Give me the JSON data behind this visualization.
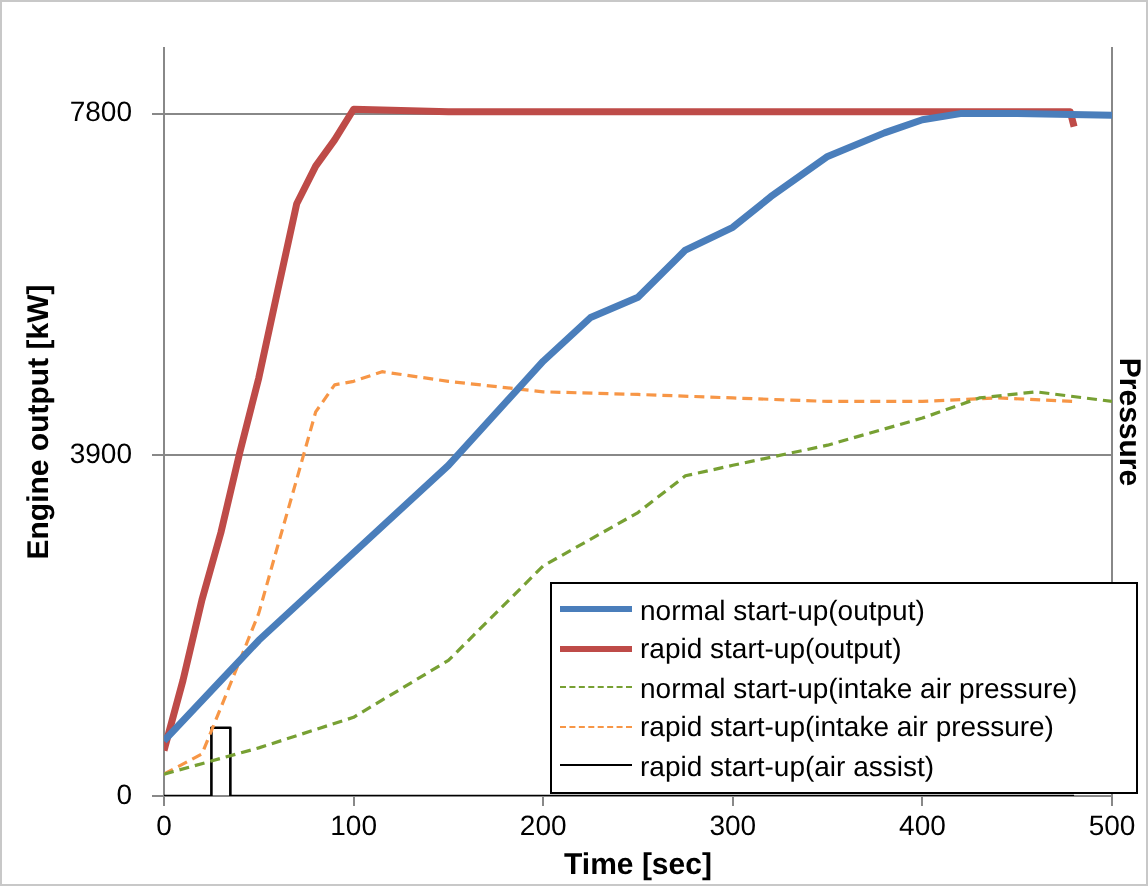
{
  "chart_data": {
    "type": "line",
    "xlabel": "Time [sec]",
    "ylabel": "Engine output [kW]",
    "y2label": "Pressure",
    "xlim": [
      0,
      500
    ],
    "xticks": [
      0,
      100,
      200,
      300,
      400,
      500
    ],
    "ylim": [
      0,
      8550
    ],
    "yticks": [
      0,
      3900,
      7800
    ],
    "grid": "y",
    "legend": "bottom right",
    "marker": "none",
    "series": [
      {
        "name": "normal start-up(output)",
        "color": "#4a7ebb",
        "line_style": "solid",
        "x": [
          0,
          30,
          50,
          100,
          150,
          200,
          225,
          250,
          275,
          300,
          320,
          350,
          380,
          400,
          420,
          450,
          500
        ],
        "values": [
          630,
          1320,
          1780,
          2780,
          3780,
          4970,
          5470,
          5700,
          6240,
          6500,
          6850,
          7310,
          7580,
          7730,
          7800,
          7800,
          7780
        ]
      },
      {
        "name": "rapid start-up(output)",
        "color": "#be4b48",
        "line_style": "solid",
        "x": [
          0,
          10,
          20,
          30,
          40,
          50,
          60,
          70,
          80,
          90,
          100,
          150,
          200,
          300,
          400,
          478,
          480
        ],
        "values": [
          520,
          1320,
          2240,
          3010,
          3930,
          4780,
          5780,
          6770,
          7200,
          7500,
          7850,
          7820,
          7820,
          7820,
          7820,
          7820,
          7650
        ]
      },
      {
        "name": "normal start-up(intake air pressure)",
        "color": "#77a033",
        "line_style": "dashed",
        "x": [
          0,
          50,
          100,
          150,
          200,
          250,
          275,
          300,
          350,
          400,
          430,
          460,
          500
        ],
        "values": [
          250,
          550,
          900,
          1550,
          2630,
          3240,
          3660,
          3780,
          4010,
          4320,
          4550,
          4620,
          4510
        ]
      },
      {
        "name": "rapid start-up(intake air pressure)",
        "color": "#f79646",
        "line_style": "dashed",
        "x": [
          0,
          20,
          30,
          40,
          50,
          60,
          70,
          80,
          90,
          100,
          115,
          150,
          200,
          250,
          300,
          350,
          400,
          440,
          480
        ],
        "values": [
          250,
          480,
          1010,
          1550,
          2090,
          2860,
          3620,
          4390,
          4700,
          4740,
          4850,
          4740,
          4620,
          4590,
          4550,
          4510,
          4510,
          4550,
          4510
        ]
      },
      {
        "name": "rapid start-up(air assist)",
        "color": "#000000",
        "line_style": "solid",
        "x": [
          0,
          25,
          25,
          35,
          35,
          480
        ],
        "values": [
          0,
          0,
          780,
          780,
          0,
          0
        ]
      }
    ]
  }
}
